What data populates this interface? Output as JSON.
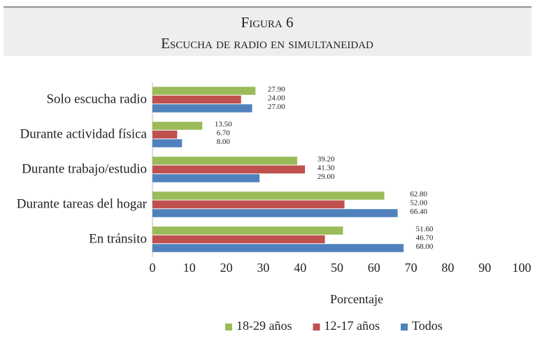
{
  "chart_data": {
    "type": "bar",
    "orientation": "horizontal",
    "title": "Figura 6",
    "subtitle": "Escucha de radio en simultaneidad",
    "xlabel": "Porcentaje",
    "categories": [
      "Solo escucha radio",
      "Durante actividad física",
      "Durante trabajo/estudio",
      "Durante tareas del hogar",
      "En tránsito"
    ],
    "series": [
      {
        "name": "18-29 años",
        "color": "#9bbb59",
        "values": [
          27.9,
          13.5,
          39.2,
          62.8,
          51.6
        ],
        "value_labels": [
          "27.90",
          "13.50",
          "39.20",
          "62.80",
          "51.60"
        ]
      },
      {
        "name": "12-17 años",
        "color": "#c0504d",
        "values": [
          24,
          6.7,
          41.3,
          52,
          46.7
        ],
        "value_labels": [
          "24.00",
          "6.70",
          "41.30",
          "52.00",
          "46.70"
        ]
      },
      {
        "name": "Todos",
        "color": "#4f81bd",
        "values": [
          27,
          8,
          29,
          66.4,
          68
        ],
        "value_labels": [
          "27.00",
          "8.00",
          "29.00",
          "66.40",
          "68.00"
        ]
      }
    ],
    "xlim": [
      0,
      100
    ],
    "xticks": [
      0,
      10,
      20,
      30,
      40,
      50,
      60,
      70,
      80,
      90,
      100
    ],
    "legend": "bottom"
  }
}
